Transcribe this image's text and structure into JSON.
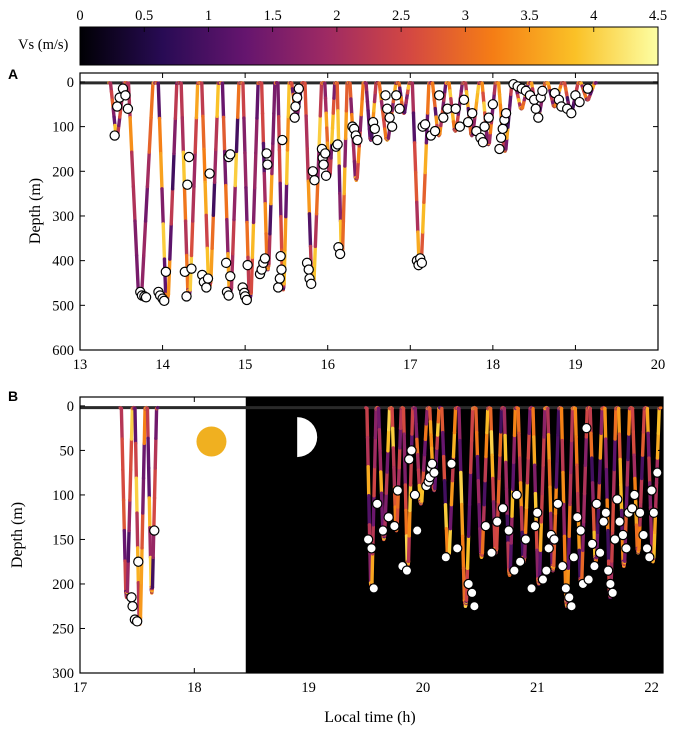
{
  "colors": {
    "night_background": "#000000",
    "sun": "#f0b020",
    "moon": "#ffffff",
    "marker_fill": "#ffffff",
    "marker_stroke": "#000000",
    "colormap": [
      "#000004",
      "#280b54",
      "#65156e",
      "#9f2a63",
      "#d44842",
      "#f57d15",
      "#fac127",
      "#fcffa4"
    ]
  },
  "icons": {
    "sun": "sun-icon",
    "moon": "half-moon-icon"
  },
  "chart_data": [
    {
      "type": "colorbar",
      "label": "Vs (m/s)",
      "range": [
        0,
        4.5
      ],
      "ticks": [
        0,
        0.5,
        1,
        1.5,
        2,
        2.5,
        3,
        3.5,
        4,
        4.5
      ],
      "tick_labels": [
        "0",
        "0.5",
        "1",
        "1.5",
        "2",
        "2.5",
        "3",
        "3.5",
        "4",
        "4.5"
      ]
    },
    {
      "type": "line",
      "panel": "A",
      "xlabel": "",
      "ylabel": "Depth (m)",
      "xlim": [
        13,
        20
      ],
      "ylim": [
        600,
        -20
      ],
      "xticks": [
        13,
        14,
        15,
        16,
        17,
        18,
        19,
        20
      ],
      "yticks": [
        0,
        100,
        200,
        300,
        400,
        500,
        600
      ],
      "dives": [
        {
          "start": 13.35,
          "end": 13.55,
          "max_depth": 120
        },
        {
          "start": 13.55,
          "end": 13.92,
          "max_depth": 480
        },
        {
          "start": 13.92,
          "end": 14.2,
          "max_depth": 490
        },
        {
          "start": 14.2,
          "end": 14.45,
          "max_depth": 480
        },
        {
          "start": 14.45,
          "end": 14.7,
          "max_depth": 460
        },
        {
          "start": 14.7,
          "end": 14.95,
          "max_depth": 475
        },
        {
          "start": 14.95,
          "end": 15.18,
          "max_depth": 485
        },
        {
          "start": 15.18,
          "end": 15.38,
          "max_depth": 420
        },
        {
          "start": 15.38,
          "end": 15.55,
          "max_depth": 465
        },
        {
          "start": 15.55,
          "end": 15.7,
          "max_depth": 80
        },
        {
          "start": 15.7,
          "end": 15.95,
          "max_depth": 455
        },
        {
          "start": 15.95,
          "end": 16.1,
          "max_depth": 210
        },
        {
          "start": 16.1,
          "end": 16.25,
          "max_depth": 385
        },
        {
          "start": 16.25,
          "end": 16.45,
          "max_depth": 220
        },
        {
          "start": 16.45,
          "end": 16.6,
          "max_depth": 130
        },
        {
          "start": 16.6,
          "end": 16.85,
          "max_depth": 130
        },
        {
          "start": 16.85,
          "end": 17.0,
          "max_depth": 70
        },
        {
          "start": 17.0,
          "end": 17.25,
          "max_depth": 415
        },
        {
          "start": 17.25,
          "end": 17.45,
          "max_depth": 120
        },
        {
          "start": 17.45,
          "end": 17.65,
          "max_depth": 110
        },
        {
          "start": 17.65,
          "end": 17.85,
          "max_depth": 120
        },
        {
          "start": 17.85,
          "end": 18.05,
          "max_depth": 140
        },
        {
          "start": 18.05,
          "end": 18.25,
          "max_depth": 155
        },
        {
          "start": 18.25,
          "end": 18.45,
          "max_depth": 60
        },
        {
          "start": 18.45,
          "end": 18.65,
          "max_depth": 80
        },
        {
          "start": 18.65,
          "end": 18.85,
          "max_depth": 55
        },
        {
          "start": 18.85,
          "end": 19.05,
          "max_depth": 70
        },
        {
          "start": 19.05,
          "end": 19.25,
          "max_depth": 40
        }
      ],
      "markers": [
        [
          13.42,
          120
        ],
        [
          13.45,
          55
        ],
        [
          13.48,
          35
        ],
        [
          13.52,
          15
        ],
        [
          13.55,
          30
        ],
        [
          13.58,
          60
        ],
        [
          13.73,
          470
        ],
        [
          13.75,
          478
        ],
        [
          13.78,
          480
        ],
        [
          13.8,
          482
        ],
        [
          13.95,
          470
        ],
        [
          13.97,
          478
        ],
        [
          14.0,
          485
        ],
        [
          14.02,
          490
        ],
        [
          14.04,
          425
        ],
        [
          14.27,
          425
        ],
        [
          14.29,
          480
        ],
        [
          14.3,
          230
        ],
        [
          14.32,
          168
        ],
        [
          14.35,
          418
        ],
        [
          14.48,
          432
        ],
        [
          14.5,
          448
        ],
        [
          14.53,
          460
        ],
        [
          14.55,
          440
        ],
        [
          14.57,
          205
        ],
        [
          14.77,
          405
        ],
        [
          14.78,
          470
        ],
        [
          14.8,
          478
        ],
        [
          14.82,
          435
        ],
        [
          14.8,
          168
        ],
        [
          14.82,
          162
        ],
        [
          14.97,
          460
        ],
        [
          14.99,
          472
        ],
        [
          15.0,
          480
        ],
        [
          15.02,
          488
        ],
        [
          15.03,
          410
        ],
        [
          15.18,
          430
        ],
        [
          15.2,
          420
        ],
        [
          15.22,
          405
        ],
        [
          15.24,
          395
        ],
        [
          15.26,
          160
        ],
        [
          15.27,
          185
        ],
        [
          15.4,
          460
        ],
        [
          15.42,
          440
        ],
        [
          15.44,
          420
        ],
        [
          15.43,
          390
        ],
        [
          15.45,
          130
        ],
        [
          15.6,
          80
        ],
        [
          15.61,
          55
        ],
        [
          15.63,
          35
        ],
        [
          15.65,
          15
        ],
        [
          15.75,
          405
        ],
        [
          15.77,
          420
        ],
        [
          15.78,
          440
        ],
        [
          15.8,
          452
        ],
        [
          15.82,
          200
        ],
        [
          15.84,
          220
        ],
        [
          15.93,
          150
        ],
        [
          15.94,
          170
        ],
        [
          15.95,
          185
        ],
        [
          15.97,
          160
        ],
        [
          15.98,
          210
        ],
        [
          16.1,
          145
        ],
        [
          16.12,
          140
        ],
        [
          16.13,
          370
        ],
        [
          16.15,
          385
        ],
        [
          16.3,
          100
        ],
        [
          16.32,
          105
        ],
        [
          16.34,
          120
        ],
        [
          16.36,
          130
        ],
        [
          16.55,
          90
        ],
        [
          16.57,
          105
        ],
        [
          16.6,
          130
        ],
        [
          16.7,
          30
        ],
        [
          16.72,
          60
        ],
        [
          16.75,
          80
        ],
        [
          16.78,
          100
        ],
        [
          16.83,
          30
        ],
        [
          16.87,
          60
        ],
        [
          17.08,
          400
        ],
        [
          17.1,
          410
        ],
        [
          17.12,
          395
        ],
        [
          17.14,
          405
        ],
        [
          17.15,
          100
        ],
        [
          17.18,
          95
        ],
        [
          17.25,
          120
        ],
        [
          17.3,
          110
        ],
        [
          17.35,
          30
        ],
        [
          17.4,
          80
        ],
        [
          17.45,
          60
        ],
        [
          17.55,
          60
        ],
        [
          17.6,
          100
        ],
        [
          17.65,
          40
        ],
        [
          17.7,
          90
        ],
        [
          17.75,
          70
        ],
        [
          17.8,
          110
        ],
        [
          17.85,
          125
        ],
        [
          17.88,
          135
        ],
        [
          17.9,
          100
        ],
        [
          17.95,
          80
        ],
        [
          18.0,
          50
        ],
        [
          18.08,
          150
        ],
        [
          18.1,
          125
        ],
        [
          18.12,
          105
        ],
        [
          18.14,
          85
        ],
        [
          18.16,
          70
        ],
        [
          18.25,
          5
        ],
        [
          18.3,
          10
        ],
        [
          18.35,
          15
        ],
        [
          18.4,
          20
        ],
        [
          18.45,
          30
        ],
        [
          18.5,
          40
        ],
        [
          18.52,
          60
        ],
        [
          18.55,
          80
        ],
        [
          18.58,
          35
        ],
        [
          18.6,
          20
        ],
        [
          18.75,
          25
        ],
        [
          18.8,
          40
        ],
        [
          18.83,
          55
        ],
        [
          18.9,
          60
        ],
        [
          18.95,
          70
        ],
        [
          19.0,
          30
        ],
        [
          19.05,
          45
        ],
        [
          19.15,
          15
        ]
      ]
    },
    {
      "type": "line",
      "panel": "B",
      "xlabel": "Local time (h)",
      "ylabel": "Depth (m)",
      "xlim": [
        17,
        22.1
      ],
      "ylim": [
        300,
        -10
      ],
      "xticks": [
        17,
        18,
        19,
        20,
        21,
        22
      ],
      "yticks": [
        0,
        50,
        100,
        150,
        200,
        250,
        300
      ],
      "night_start": 18.45,
      "sun_position": [
        18.15,
        40
      ],
      "moon_position": [
        18.9,
        35
      ],
      "dives": [
        {
          "start": 17.35,
          "end": 17.47,
          "max_depth": 215
        },
        {
          "start": 17.47,
          "end": 17.58,
          "max_depth": 245
        },
        {
          "start": 17.58,
          "end": 17.68,
          "max_depth": 210
        },
        {
          "start": 19.5,
          "end": 19.6,
          "max_depth": 205
        },
        {
          "start": 19.6,
          "end": 19.72,
          "max_depth": 150
        },
        {
          "start": 19.72,
          "end": 19.82,
          "max_depth": 140
        },
        {
          "start": 19.82,
          "end": 19.92,
          "max_depth": 180
        },
        {
          "start": 19.92,
          "end": 20.05,
          "max_depth": 110
        },
        {
          "start": 20.05,
          "end": 20.15,
          "max_depth": 95
        },
        {
          "start": 20.15,
          "end": 20.3,
          "max_depth": 170
        },
        {
          "start": 20.3,
          "end": 20.45,
          "max_depth": 225
        },
        {
          "start": 20.45,
          "end": 20.58,
          "max_depth": 170
        },
        {
          "start": 20.58,
          "end": 20.7,
          "max_depth": 165
        },
        {
          "start": 20.7,
          "end": 20.82,
          "max_depth": 190
        },
        {
          "start": 20.82,
          "end": 20.95,
          "max_depth": 175
        },
        {
          "start": 20.95,
          "end": 21.08,
          "max_depth": 200
        },
        {
          "start": 21.08,
          "end": 21.2,
          "max_depth": 185
        },
        {
          "start": 21.2,
          "end": 21.32,
          "max_depth": 225
        },
        {
          "start": 21.32,
          "end": 21.45,
          "max_depth": 200
        },
        {
          "start": 21.45,
          "end": 21.58,
          "max_depth": 175
        },
        {
          "start": 21.58,
          "end": 21.7,
          "max_depth": 215
        },
        {
          "start": 21.7,
          "end": 21.82,
          "max_depth": 180
        },
        {
          "start": 21.82,
          "end": 21.95,
          "max_depth": 165
        },
        {
          "start": 21.95,
          "end": 22.08,
          "max_depth": 175
        }
      ],
      "markers": [
        [
          17.45,
          215
        ],
        [
          17.46,
          225
        ],
        [
          17.48,
          240
        ],
        [
          17.5,
          242
        ],
        [
          17.51,
          175
        ],
        [
          17.65,
          140
        ],
        [
          19.52,
          150
        ],
        [
          19.55,
          160
        ],
        [
          19.57,
          205
        ],
        [
          19.6,
          110
        ],
        [
          19.65,
          140
        ],
        [
          19.7,
          125
        ],
        [
          19.75,
          135
        ],
        [
          19.78,
          95
        ],
        [
          19.82,
          180
        ],
        [
          19.86,
          185
        ],
        [
          19.88,
          60
        ],
        [
          19.9,
          50
        ],
        [
          19.93,
          100
        ],
        [
          19.95,
          140
        ],
        [
          20.03,
          90
        ],
        [
          20.05,
          85
        ],
        [
          20.06,
          80
        ],
        [
          20.07,
          70
        ],
        [
          20.08,
          65
        ],
        [
          20.1,
          75
        ],
        [
          20.2,
          170
        ],
        [
          20.25,
          65
        ],
        [
          20.3,
          160
        ],
        [
          20.4,
          200
        ],
        [
          20.43,
          210
        ],
        [
          20.45,
          225
        ],
        [
          20.55,
          135
        ],
        [
          20.6,
          165
        ],
        [
          20.65,
          130
        ],
        [
          20.7,
          115
        ],
        [
          20.75,
          140
        ],
        [
          20.8,
          185
        ],
        [
          20.82,
          100
        ],
        [
          20.85,
          175
        ],
        [
          20.9,
          150
        ],
        [
          20.95,
          205
        ],
        [
          20.98,
          135
        ],
        [
          21.0,
          120
        ],
        [
          21.05,
          195
        ],
        [
          21.08,
          185
        ],
        [
          21.1,
          160
        ],
        [
          21.12,
          145
        ],
        [
          21.15,
          150
        ],
        [
          21.18,
          110
        ],
        [
          21.22,
          180
        ],
        [
          21.25,
          205
        ],
        [
          21.28,
          215
        ],
        [
          21.3,
          225
        ],
        [
          21.32,
          170
        ],
        [
          21.35,
          125
        ],
        [
          21.38,
          140
        ],
        [
          21.4,
          200
        ],
        [
          21.43,
          25
        ],
        [
          21.45,
          195
        ],
        [
          21.48,
          155
        ],
        [
          21.5,
          180
        ],
        [
          21.52,
          110
        ],
        [
          21.55,
          165
        ],
        [
          21.58,
          130
        ],
        [
          21.6,
          120
        ],
        [
          21.62,
          185
        ],
        [
          21.64,
          200
        ],
        [
          21.66,
          210
        ],
        [
          21.68,
          150
        ],
        [
          21.7,
          105
        ],
        [
          21.72,
          130
        ],
        [
          21.75,
          145
        ],
        [
          21.78,
          160
        ],
        [
          21.8,
          120
        ],
        [
          21.83,
          115
        ],
        [
          21.85,
          100
        ],
        [
          21.9,
          120
        ],
        [
          21.93,
          145
        ],
        [
          21.96,
          160
        ],
        [
          21.98,
          170
        ],
        [
          22.0,
          95
        ],
        [
          22.02,
          120
        ],
        [
          22.05,
          75
        ]
      ]
    }
  ]
}
